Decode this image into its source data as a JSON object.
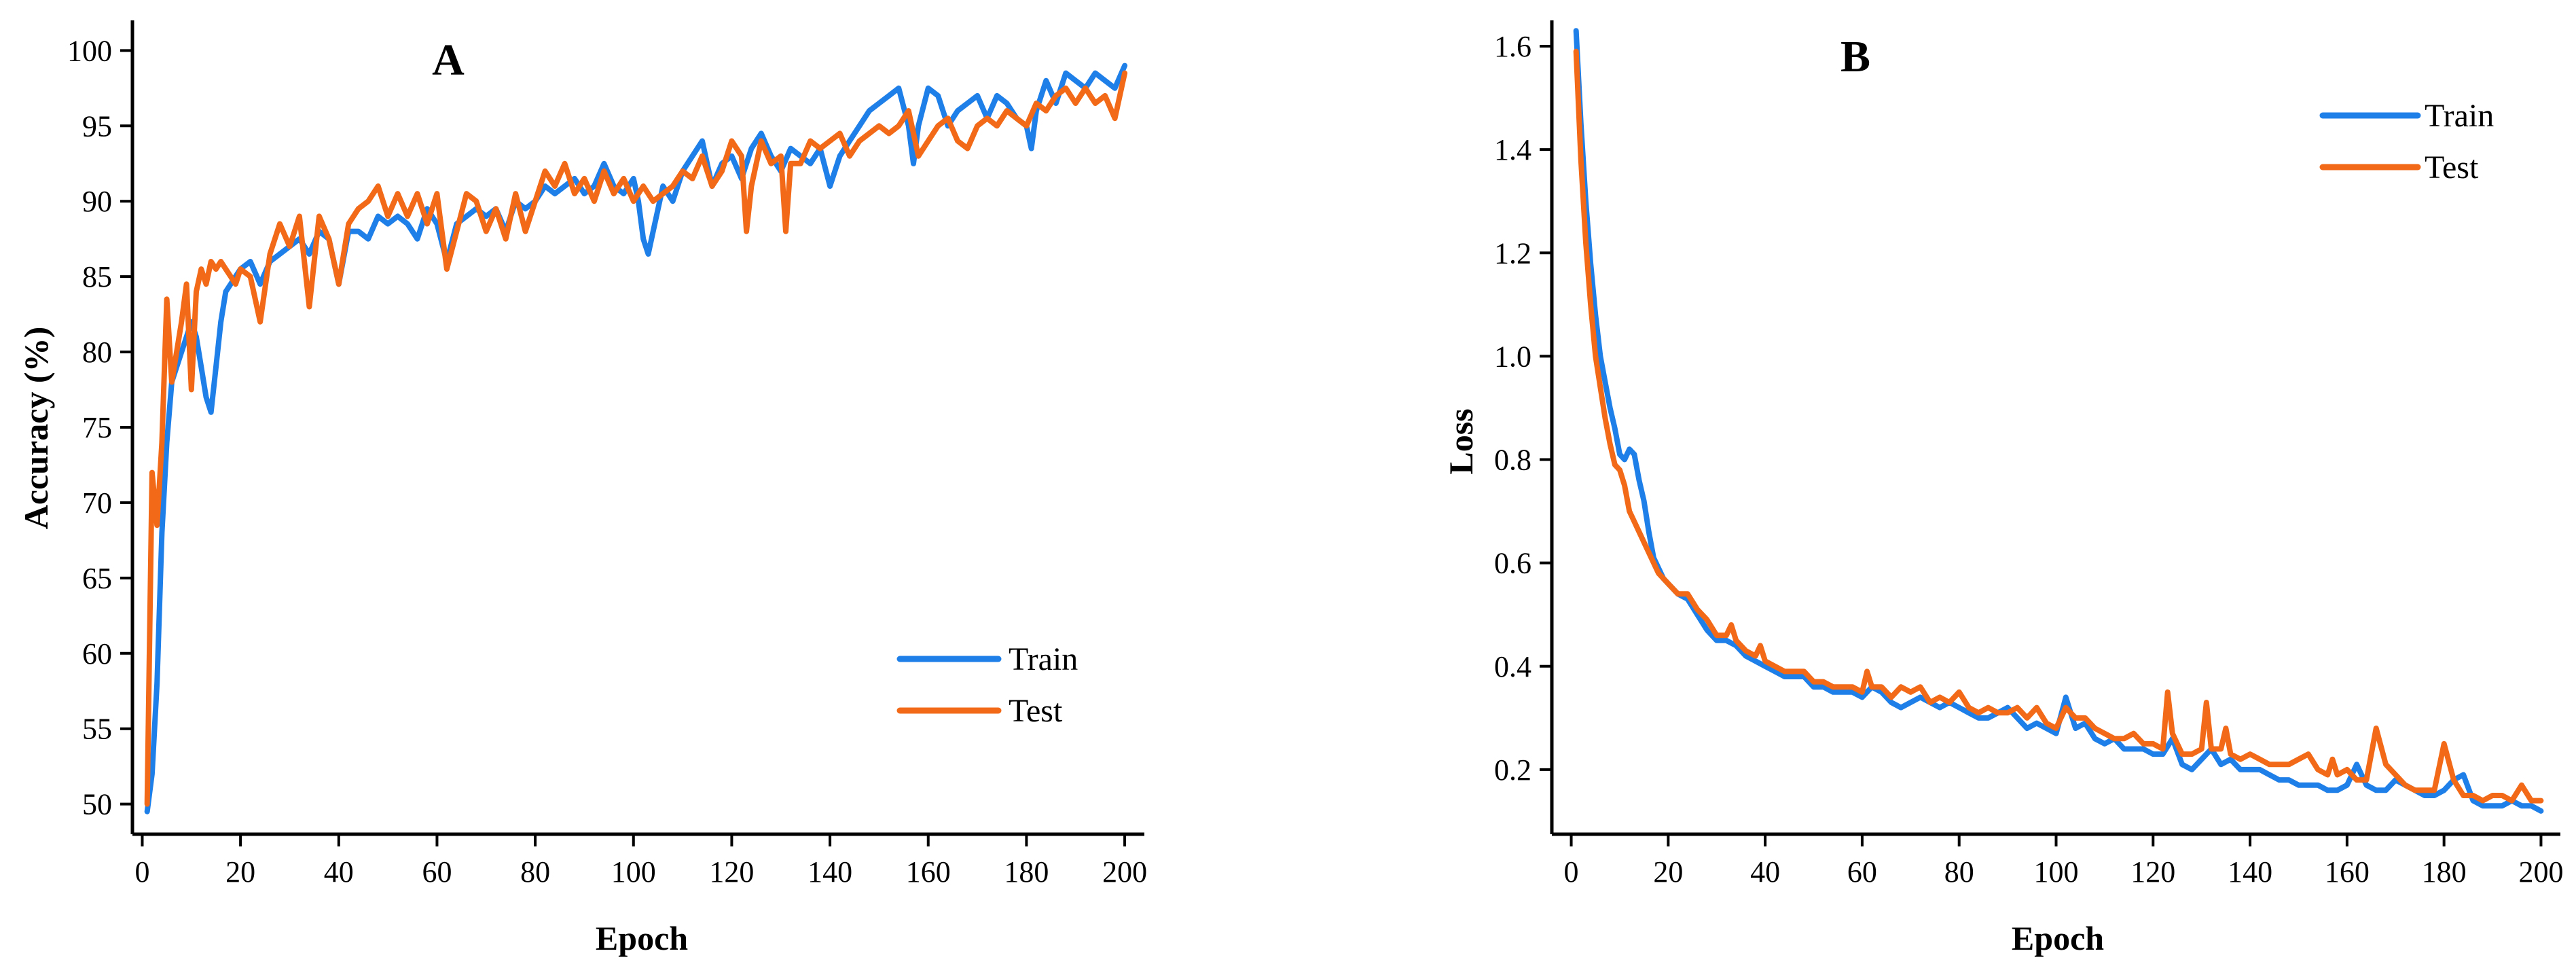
{
  "chart_data": [
    {
      "type": "line",
      "panel_label": "A",
      "title": "",
      "xlabel": "Epoch",
      "ylabel": "Accuracy (%)",
      "xlim": [
        -2,
        204
      ],
      "ylim": [
        48,
        102
      ],
      "xticks": [
        0,
        20,
        40,
        60,
        80,
        100,
        120,
        140,
        160,
        180,
        200
      ],
      "yticks": [
        50,
        55,
        60,
        65,
        70,
        75,
        80,
        85,
        90,
        95,
        100
      ],
      "legend_position": "bottom-right",
      "series": [
        {
          "name": "Train",
          "color": "#1f7fe8",
          "x": [
            1,
            2,
            3,
            4,
            5,
            6,
            7,
            8,
            9,
            10,
            11,
            12,
            13,
            14,
            15,
            16,
            17,
            18,
            19,
            20,
            22,
            24,
            26,
            28,
            30,
            32,
            34,
            36,
            38,
            40,
            42,
            44,
            46,
            48,
            50,
            52,
            54,
            56,
            58,
            60,
            62,
            64,
            66,
            68,
            70,
            72,
            74,
            76,
            78,
            80,
            82,
            84,
            86,
            88,
            90,
            92,
            94,
            96,
            98,
            100,
            101,
            102,
            103,
            104,
            106,
            108,
            110,
            112,
            114,
            116,
            118,
            120,
            122,
            124,
            126,
            128,
            130,
            132,
            134,
            136,
            138,
            140,
            142,
            144,
            146,
            148,
            150,
            152,
            154,
            156,
            157,
            158,
            160,
            162,
            164,
            166,
            168,
            170,
            172,
            174,
            176,
            178,
            180,
            181,
            182,
            184,
            186,
            188,
            190,
            192,
            194,
            196,
            198,
            200
          ],
          "values": [
            49.5,
            52,
            58,
            68,
            74,
            78,
            79,
            80,
            81,
            82,
            81,
            79,
            77,
            76,
            79,
            82,
            84,
            84.5,
            85,
            85.5,
            86,
            84.5,
            86,
            86.5,
            87,
            87.5,
            86.5,
            88,
            87.5,
            84.5,
            88,
            88,
            87.5,
            89,
            88.5,
            89,
            88.5,
            87.5,
            89.5,
            88.5,
            86,
            88.5,
            89,
            89.5,
            89,
            89.5,
            88,
            90,
            89.5,
            90,
            91,
            90.5,
            91,
            91.5,
            90.5,
            91,
            92.5,
            91,
            90.5,
            91.5,
            90,
            87.5,
            86.5,
            88,
            91,
            90,
            92,
            93,
            94,
            91,
            92.5,
            93,
            91.5,
            93.5,
            94.5,
            93,
            92,
            93.5,
            93,
            92.5,
            93.5,
            91,
            93,
            94,
            95,
            96,
            96.5,
            97,
            97.5,
            95,
            92.5,
            95,
            97.5,
            97,
            95,
            96,
            96.5,
            97,
            95.5,
            97,
            96.5,
            95.5,
            95,
            93.5,
            96,
            98,
            96.5,
            98.5,
            98,
            97.5,
            98.5,
            98,
            97.5,
            99
          ]
        },
        {
          "name": "Test",
          "color": "#f26a17",
          "x": [
            1,
            2,
            3,
            4,
            5,
            6,
            7,
            8,
            9,
            10,
            11,
            12,
            13,
            14,
            15,
            16,
            17,
            18,
            19,
            20,
            22,
            24,
            26,
            28,
            30,
            32,
            34,
            36,
            38,
            40,
            42,
            44,
            46,
            48,
            50,
            52,
            54,
            56,
            58,
            60,
            62,
            64,
            66,
            68,
            70,
            72,
            74,
            76,
            78,
            80,
            82,
            84,
            86,
            88,
            90,
            92,
            94,
            96,
            98,
            100,
            102,
            104,
            106,
            108,
            110,
            112,
            114,
            116,
            118,
            120,
            122,
            123,
            124,
            126,
            128,
            130,
            131,
            132,
            134,
            136,
            138,
            140,
            142,
            144,
            146,
            148,
            150,
            152,
            154,
            156,
            158,
            160,
            162,
            164,
            166,
            168,
            170,
            172,
            174,
            176,
            178,
            180,
            182,
            184,
            186,
            188,
            190,
            192,
            194,
            196,
            198,
            200
          ],
          "values": [
            50,
            72,
            68.5,
            74,
            83.5,
            78,
            80,
            82,
            84.5,
            77.5,
            84,
            85.5,
            84.5,
            86,
            85.5,
            86,
            85.5,
            85,
            84.5,
            85.5,
            85,
            82,
            86.5,
            88.5,
            87,
            89,
            83,
            89,
            87.5,
            84.5,
            88.5,
            89.5,
            90,
            91,
            89,
            90.5,
            89,
            90.5,
            88.5,
            90.5,
            85.5,
            88,
            90.5,
            90,
            88,
            89.5,
            87.5,
            90.5,
            88,
            90,
            92,
            91,
            92.5,
            90.5,
            91.5,
            90,
            92,
            90.5,
            91.5,
            90,
            91,
            90,
            90.5,
            91,
            92,
            91.5,
            93,
            91,
            92,
            94,
            93,
            88,
            91,
            94,
            92.5,
            93,
            88,
            92.5,
            92.5,
            94,
            93.5,
            94,
            94.5,
            93,
            94,
            94.5,
            95,
            94.5,
            95,
            96,
            93,
            94,
            95,
            95.5,
            94,
            93.5,
            95,
            95.5,
            95,
            96,
            95.5,
            95,
            96.5,
            96,
            97,
            97.5,
            96.5,
            97.5,
            96.5,
            97,
            95.5,
            98.5
          ]
        }
      ]
    },
    {
      "type": "line",
      "panel_label": "B",
      "title": "",
      "xlabel": "Epoch",
      "ylabel": "Loss",
      "xlim": [
        -4,
        204
      ],
      "ylim": [
        0.075,
        1.65
      ],
      "xticks": [
        0,
        20,
        40,
        60,
        80,
        100,
        120,
        140,
        160,
        180,
        200
      ],
      "yticks": [
        0.2,
        0.4,
        0.6,
        0.8,
        1.0,
        1.2,
        1.4,
        1.6
      ],
      "ytick_labels": [
        "0.2",
        "0.4",
        "0.6",
        "0.8",
        "1.0",
        "1.2",
        "1.4",
        "1.6"
      ],
      "legend_position": "top-right",
      "series": [
        {
          "name": "Train",
          "color": "#1f7fe8",
          "x": [
            1,
            2,
            3,
            4,
            5,
            6,
            7,
            8,
            9,
            10,
            11,
            12,
            13,
            14,
            15,
            16,
            17,
            18,
            19,
            20,
            22,
            24,
            26,
            28,
            30,
            32,
            34,
            36,
            38,
            40,
            42,
            44,
            46,
            48,
            50,
            52,
            54,
            56,
            58,
            60,
            62,
            64,
            66,
            68,
            70,
            72,
            74,
            76,
            78,
            80,
            82,
            84,
            86,
            88,
            90,
            92,
            94,
            96,
            98,
            100,
            102,
            104,
            106,
            108,
            110,
            112,
            114,
            116,
            118,
            120,
            122,
            124,
            126,
            128,
            130,
            132,
            134,
            136,
            138,
            140,
            142,
            144,
            146,
            148,
            150,
            152,
            154,
            156,
            158,
            160,
            162,
            164,
            166,
            168,
            170,
            172,
            174,
            176,
            178,
            180,
            182,
            184,
            186,
            188,
            190,
            192,
            194,
            196,
            198,
            200
          ],
          "values": [
            1.63,
            1.45,
            1.3,
            1.18,
            1.08,
            1.0,
            0.95,
            0.9,
            0.86,
            0.81,
            0.8,
            0.82,
            0.81,
            0.76,
            0.72,
            0.66,
            0.61,
            0.59,
            0.57,
            0.56,
            0.54,
            0.53,
            0.5,
            0.47,
            0.45,
            0.45,
            0.44,
            0.42,
            0.41,
            0.4,
            0.39,
            0.38,
            0.38,
            0.38,
            0.36,
            0.36,
            0.35,
            0.35,
            0.35,
            0.34,
            0.36,
            0.35,
            0.33,
            0.32,
            0.33,
            0.34,
            0.33,
            0.32,
            0.33,
            0.32,
            0.31,
            0.3,
            0.3,
            0.31,
            0.32,
            0.3,
            0.28,
            0.29,
            0.28,
            0.27,
            0.34,
            0.28,
            0.29,
            0.26,
            0.25,
            0.26,
            0.24,
            0.24,
            0.24,
            0.23,
            0.23,
            0.26,
            0.21,
            0.2,
            0.22,
            0.24,
            0.21,
            0.22,
            0.2,
            0.2,
            0.2,
            0.19,
            0.18,
            0.18,
            0.17,
            0.17,
            0.17,
            0.16,
            0.16,
            0.17,
            0.21,
            0.17,
            0.16,
            0.16,
            0.18,
            0.17,
            0.16,
            0.15,
            0.15,
            0.16,
            0.18,
            0.19,
            0.14,
            0.13,
            0.13,
            0.13,
            0.14,
            0.13,
            0.13,
            0.12
          ]
        },
        {
          "name": "Test",
          "color": "#f26a17",
          "x": [
            1,
            2,
            3,
            4,
            5,
            6,
            7,
            8,
            9,
            10,
            11,
            12,
            13,
            14,
            15,
            16,
            17,
            18,
            19,
            20,
            22,
            24,
            26,
            28,
            30,
            32,
            33,
            34,
            36,
            38,
            39,
            40,
            42,
            44,
            46,
            48,
            50,
            52,
            54,
            56,
            58,
            60,
            61,
            62,
            64,
            66,
            68,
            70,
            72,
            74,
            76,
            78,
            80,
            82,
            84,
            86,
            88,
            90,
            92,
            94,
            96,
            98,
            100,
            102,
            104,
            106,
            108,
            110,
            112,
            114,
            116,
            118,
            120,
            122,
            123,
            124,
            126,
            128,
            130,
            131,
            132,
            134,
            135,
            136,
            138,
            140,
            142,
            144,
            146,
            148,
            150,
            152,
            154,
            156,
            157,
            158,
            160,
            162,
            164,
            166,
            168,
            170,
            172,
            174,
            176,
            178,
            180,
            182,
            184,
            186,
            188,
            190,
            192,
            194,
            196,
            198,
            200
          ],
          "values": [
            1.59,
            1.38,
            1.22,
            1.1,
            1.0,
            0.94,
            0.88,
            0.83,
            0.79,
            0.78,
            0.75,
            0.7,
            0.68,
            0.66,
            0.64,
            0.62,
            0.6,
            0.58,
            0.57,
            0.56,
            0.54,
            0.54,
            0.51,
            0.49,
            0.46,
            0.46,
            0.48,
            0.45,
            0.43,
            0.42,
            0.44,
            0.41,
            0.4,
            0.39,
            0.39,
            0.39,
            0.37,
            0.37,
            0.36,
            0.36,
            0.36,
            0.35,
            0.39,
            0.36,
            0.36,
            0.34,
            0.36,
            0.35,
            0.36,
            0.33,
            0.34,
            0.33,
            0.35,
            0.32,
            0.31,
            0.32,
            0.31,
            0.31,
            0.32,
            0.3,
            0.32,
            0.29,
            0.28,
            0.32,
            0.3,
            0.3,
            0.28,
            0.27,
            0.26,
            0.26,
            0.27,
            0.25,
            0.25,
            0.24,
            0.35,
            0.27,
            0.23,
            0.23,
            0.24,
            0.33,
            0.24,
            0.24,
            0.28,
            0.23,
            0.22,
            0.23,
            0.22,
            0.21,
            0.21,
            0.21,
            0.22,
            0.23,
            0.2,
            0.19,
            0.22,
            0.19,
            0.2,
            0.18,
            0.18,
            0.28,
            0.21,
            0.19,
            0.17,
            0.16,
            0.16,
            0.16,
            0.25,
            0.18,
            0.15,
            0.15,
            0.14,
            0.15,
            0.15,
            0.14,
            0.17,
            0.14,
            0.14
          ]
        }
      ]
    }
  ]
}
